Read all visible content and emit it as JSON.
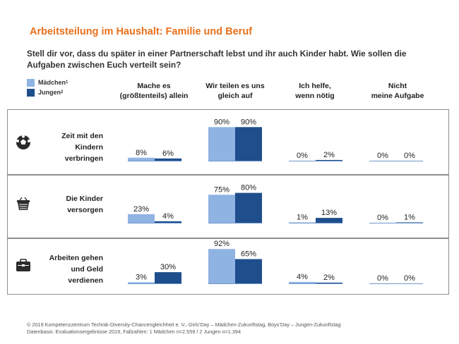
{
  "title": "Arbeitsteilung im Haushalt: Familie und Beruf",
  "question": "Stell dir vor, dass du später in einer Partnerschaft lebst und ihr auch Kinder habt. Wie sollen die Aufgaben zwischen Euch verteilt sein?",
  "legend": [
    {
      "name": "Mädchen",
      "sup": "1",
      "color": "#8fb4e3"
    },
    {
      "name": "Jungen",
      "sup": "2",
      "color": "#1f4e8c"
    }
  ],
  "columns": [
    {
      "line1": "Mache es",
      "line2": "(größtenteils) allein"
    },
    {
      "line1": "Wir teilen es uns",
      "line2": "gleich auf"
    },
    {
      "line1": "Ich helfe,",
      "line2": "wenn nötig"
    },
    {
      "line1": "Nicht",
      "line2": "meine Aufgabe"
    }
  ],
  "rows": [
    {
      "label1": "Zeit mit den",
      "label2": "Kindern",
      "label3": "verbringen",
      "icon": "soccer-ball-icon"
    },
    {
      "label1": "Die Kinder",
      "label2": "versorgen",
      "label3": "",
      "icon": "laundry-basket-icon"
    },
    {
      "label1": "Arbeiten gehen",
      "label2": "und Geld",
      "label3": "verdienen",
      "icon": "briefcase-icon"
    }
  ],
  "footer": {
    "line1": "© 2019 Kompetenzzentrum  Technik-Diversity-Chancengleichheit e. V., Girls’Day – Mädchen-Zukunftstag, Boys’Day – Jungen-Zukunftstag",
    "line2": "Datenbasis: Evaluationsergebnisse 2019, Fallzahlen: 1 Mädchen n=2.559 / 2 Jungen n=1.394"
  },
  "chart_data": {
    "type": "bar",
    "categories": [
      "Mache es (größtenteils) allein",
      "Wir teilen es uns gleich auf",
      "Ich helfe, wenn nötig",
      "Nicht meine Aufgabe"
    ],
    "groups": [
      "Zeit mit den Kindern verbringen",
      "Die Kinder versorgen",
      "Arbeiten gehen und Geld verdienen"
    ],
    "series": [
      {
        "name": "Mädchen",
        "color": "#8fb4e3",
        "values": [
          [
            8,
            90,
            0,
            0
          ],
          [
            23,
            75,
            1,
            0
          ],
          [
            3,
            92,
            4,
            0
          ]
        ]
      },
      {
        "name": "Jungen",
        "color": "#1f4e8c",
        "values": [
          [
            6,
            90,
            2,
            0
          ],
          [
            4,
            80,
            13,
            1
          ],
          [
            30,
            65,
            2,
            0
          ]
        ]
      }
    ],
    "value_suffix": "%",
    "ylim": [
      0,
      100
    ]
  }
}
